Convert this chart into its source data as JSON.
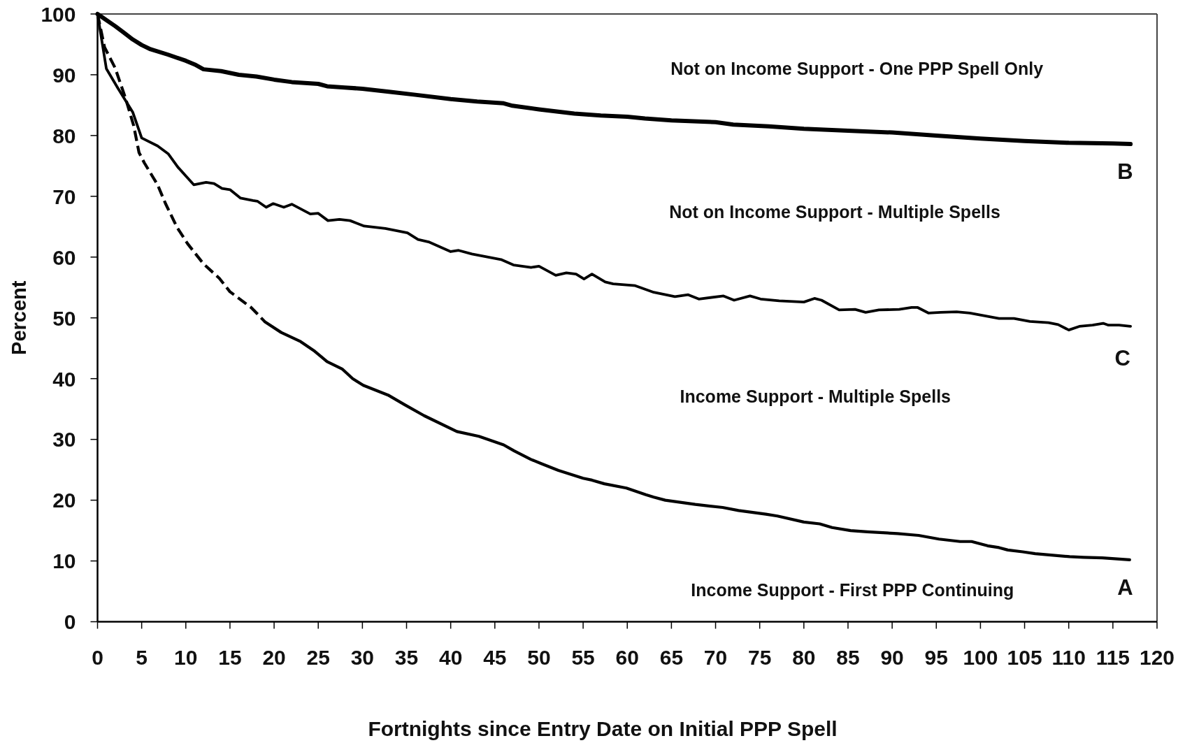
{
  "chart_data": {
    "type": "line",
    "xlabel": "Fortnights since Entry Date on Initial PPP Spell",
    "ylabel": "Percent",
    "xlim": [
      0,
      120
    ],
    "xticks": [
      0,
      5,
      10,
      15,
      20,
      25,
      30,
      35,
      40,
      45,
      50,
      55,
      60,
      65,
      70,
      75,
      80,
      85,
      90,
      95,
      100,
      105,
      110,
      115,
      120
    ],
    "ylim": [
      0,
      100
    ],
    "yticks": [
      0,
      10,
      20,
      30,
      40,
      50,
      60,
      70,
      80,
      90,
      100
    ],
    "series": [
      {
        "color": "#000000",
        "line_style": "solid",
        "x": [
          0,
          1,
          2,
          3,
          4,
          5,
          6,
          8,
          10,
          11,
          12,
          14,
          16,
          18,
          20,
          22,
          25,
          26,
          28,
          30,
          33,
          36,
          40,
          43,
          46,
          47,
          50,
          54,
          57,
          60,
          62,
          65,
          70,
          72,
          76,
          80,
          85,
          90,
          95,
          100,
          105,
          110,
          115,
          117
        ],
        "values": [
          100,
          99.0,
          98.0,
          96.9,
          95.8,
          94.9,
          94.2,
          93.3,
          92.3,
          91.7,
          90.9,
          90.6,
          90.0,
          89.7,
          89.2,
          88.8,
          88.5,
          88.1,
          87.9,
          87.7,
          87.2,
          86.7,
          86.0,
          85.6,
          85.3,
          84.9,
          84.3,
          83.6,
          83.3,
          83.1,
          82.8,
          82.5,
          82.2,
          81.8,
          81.5,
          81.1,
          80.8,
          80.5,
          80.0,
          79.5,
          79.1,
          78.8,
          78.7,
          78.6
        ]
      },
      {
        "color": "#000000",
        "line_style": "solid",
        "x": [
          0,
          1,
          2.3,
          4,
          5,
          6.8,
          8,
          9.1,
          10.9,
          12.3,
          13.2,
          14.1,
          15,
          16.2,
          17.6,
          18.1,
          19.1,
          19.9,
          21.1,
          22,
          24.1,
          25,
          26.1,
          27.4,
          28.6,
          30.2,
          32.6,
          34.4,
          35.1,
          36.3,
          37.5,
          40,
          40.9,
          42.4,
          45.7,
          47.1,
          49.1,
          50,
          51.9,
          53.1,
          54.2,
          55.1,
          56,
          57.5,
          58.4,
          60.9,
          63,
          65.4,
          66.9,
          68.1,
          70.9,
          72.1,
          73.9,
          75.1,
          77.2,
          80,
          81.2,
          82,
          84,
          85.8,
          87,
          88.5,
          90.8,
          92.2,
          92.9,
          94.1,
          95.5,
          97.3,
          98.8,
          102.1,
          103.8,
          105.6,
          107.7,
          108.8,
          110,
          111.2,
          112.7,
          113.9,
          114.5,
          115.7,
          117
        ],
        "values": [
          100,
          91.0,
          87.8,
          83.8,
          79.6,
          78.3,
          77.0,
          74.8,
          71.9,
          72.3,
          72.1,
          71.3,
          71.1,
          69.7,
          69.3,
          69.2,
          68.2,
          68.8,
          68.2,
          68.7,
          67.1,
          67.2,
          66.0,
          66.2,
          66.0,
          65.1,
          64.7,
          64.2,
          64.0,
          62.9,
          62.5,
          60.9,
          61.1,
          60.5,
          59.6,
          58.7,
          58.3,
          58.5,
          57.0,
          57.4,
          57.2,
          56.4,
          57.2,
          55.9,
          55.6,
          55.3,
          54.2,
          53.5,
          53.8,
          53.1,
          53.6,
          52.9,
          53.6,
          53.1,
          52.8,
          52.6,
          53.2,
          52.9,
          51.3,
          51.4,
          50.9,
          51.3,
          51.4,
          51.7,
          51.7,
          50.8,
          50.9,
          51.0,
          50.8,
          49.9,
          49.9,
          49.4,
          49.2,
          48.9,
          48.0,
          48.6,
          48.8,
          49.1,
          48.8,
          48.8,
          48.6
        ]
      },
      {
        "color": "#000000",
        "line_style": "dashed",
        "x": [
          0,
          0.8,
          2,
          3.2,
          4.1,
          4.7,
          5.3,
          6.8,
          7.7,
          9,
          10.2,
          12,
          13.8,
          15,
          17.4,
          19
        ],
        "values": [
          100,
          94.5,
          91.1,
          86.0,
          81.6,
          77.2,
          75.5,
          71.9,
          68.8,
          64.9,
          62.2,
          58.9,
          56.5,
          54.3,
          51.7,
          49.3
        ]
      },
      {
        "color": "#000000",
        "line_style": "solid",
        "x": [
          19,
          20.8,
          23,
          24.6,
          26,
          27.7,
          28.9,
          30.1,
          32.9,
          34.8,
          37,
          40.7,
          43.2,
          46,
          47.2,
          49.1,
          50.3,
          52.2,
          55,
          56,
          57.4,
          59.9,
          62.1,
          63,
          64.3,
          67.7,
          70.8,
          72.6,
          75.7,
          77,
          80,
          81.8,
          83.2,
          85.3,
          87.2,
          90.6,
          93,
          95.3,
          97.7,
          99,
          100.8,
          102.1,
          103.1,
          104.8,
          106.2,
          110.1,
          111.7,
          113.8,
          116.9
        ],
        "values": [
          49.3,
          47.6,
          46.1,
          44.5,
          42.8,
          41.6,
          40.0,
          38.9,
          37.3,
          35.7,
          33.9,
          31.3,
          30.5,
          29.1,
          28.1,
          26.7,
          26.0,
          24.9,
          23.6,
          23.3,
          22.7,
          22.0,
          20.9,
          20.5,
          20.0,
          19.3,
          18.8,
          18.3,
          17.7,
          17.4,
          16.4,
          16.1,
          15.5,
          15.0,
          14.8,
          14.5,
          14.2,
          13.6,
          13.2,
          13.2,
          12.5,
          12.2,
          11.8,
          11.5,
          11.2,
          10.7,
          10.6,
          10.5,
          10.2
        ]
      }
    ],
    "annotations": [
      "Not on Income Support - One PPP Spell Only",
      "B",
      "Not on Income Support - Multiple Spells",
      "C",
      "Income Support - Multiple Spells",
      "Income Support - First PPP Continuing",
      "A"
    ]
  }
}
